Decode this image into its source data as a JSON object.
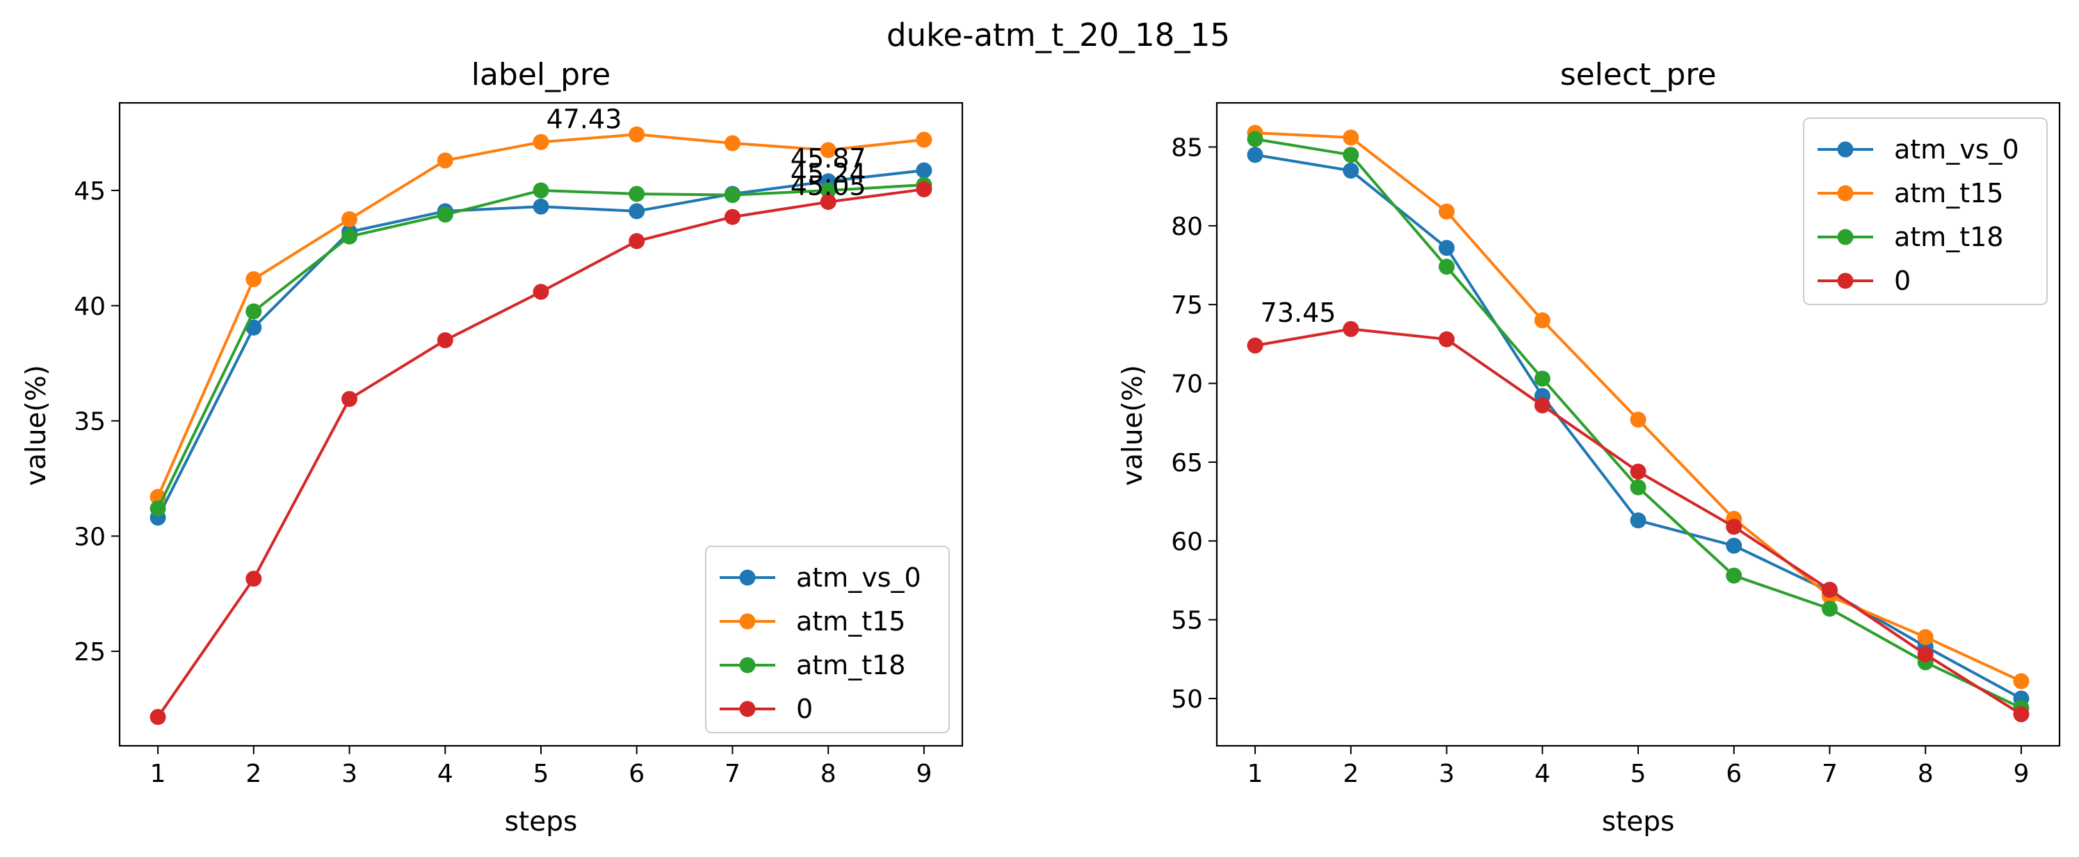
{
  "figure": {
    "suptitle": "duke-atm_t_20_18_15"
  },
  "chart_data": [
    {
      "type": "line",
      "title": "label_pre",
      "xlabel": "steps",
      "ylabel": "value(%)",
      "x": [
        1,
        2,
        3,
        4,
        5,
        6,
        7,
        8,
        9
      ],
      "xticks": [
        "1",
        "2",
        "3",
        "4",
        "5",
        "6",
        "7",
        "8",
        "9"
      ],
      "yticks": [
        "25",
        "30",
        "35",
        "40",
        "45"
      ],
      "xlim": [
        0.6,
        9.4
      ],
      "ylim": [
        20.9,
        48.8
      ],
      "grid": false,
      "legend_position": "lower-right",
      "series": [
        {
          "name": "atm_vs_0",
          "color": "#1f77b4",
          "values": [
            30.8,
            39.05,
            43.2,
            44.1,
            44.3,
            44.1,
            44.85,
            45.4,
            45.87
          ]
        },
        {
          "name": "atm_t15",
          "color": "#ff7f0e",
          "values": [
            31.7,
            41.15,
            43.75,
            46.3,
            47.1,
            47.43,
            47.05,
            46.75,
            47.2
          ]
        },
        {
          "name": "atm_t18",
          "color": "#2ca02c",
          "values": [
            31.2,
            39.75,
            43.0,
            43.95,
            45.0,
            44.85,
            44.8,
            45.0,
            45.24
          ]
        },
        {
          "name": "0",
          "color": "#d62728",
          "values": [
            22.15,
            28.15,
            35.95,
            38.5,
            40.6,
            42.8,
            43.85,
            44.5,
            45.05
          ]
        }
      ],
      "annotations": [
        {
          "text": "47.43",
          "x": 5.45,
          "y": 47.7
        },
        {
          "text": "45.87",
          "x": 8.0,
          "y": 46.0
        },
        {
          "text": "45.24",
          "x": 8.0,
          "y": 45.35
        },
        {
          "text": "45.05",
          "x": 8.0,
          "y": 44.8
        }
      ]
    },
    {
      "type": "line",
      "title": "select_pre",
      "xlabel": "steps",
      "ylabel": "value(%)",
      "x": [
        1,
        2,
        3,
        4,
        5,
        6,
        7,
        8,
        9
      ],
      "xticks": [
        "1",
        "2",
        "3",
        "4",
        "5",
        "6",
        "7",
        "8",
        "9"
      ],
      "yticks": [
        "50",
        "55",
        "60",
        "65",
        "70",
        "75",
        "80",
        "85"
      ],
      "xlim": [
        0.6,
        9.4
      ],
      "ylim": [
        47.0,
        87.8
      ],
      "grid": false,
      "legend_position": "upper-right",
      "series": [
        {
          "name": "atm_vs_0",
          "color": "#1f77b4",
          "values": [
            84.5,
            83.5,
            78.6,
            69.2,
            61.3,
            59.7,
            56.8,
            53.3,
            50.0
          ]
        },
        {
          "name": "atm_t15",
          "color": "#ff7f0e",
          "values": [
            85.9,
            85.6,
            80.9,
            74.0,
            67.7,
            61.4,
            56.5,
            53.9,
            51.1
          ]
        },
        {
          "name": "atm_t18",
          "color": "#2ca02c",
          "values": [
            85.5,
            84.5,
            77.4,
            70.3,
            63.4,
            57.8,
            55.7,
            52.3,
            49.4
          ]
        },
        {
          "name": "0",
          "color": "#d62728",
          "values": [
            72.4,
            73.45,
            72.8,
            68.6,
            64.4,
            60.9,
            56.9,
            52.8,
            49.0
          ]
        }
      ],
      "annotations": [
        {
          "text": "73.45",
          "x": 1.45,
          "y": 73.9
        }
      ]
    }
  ]
}
